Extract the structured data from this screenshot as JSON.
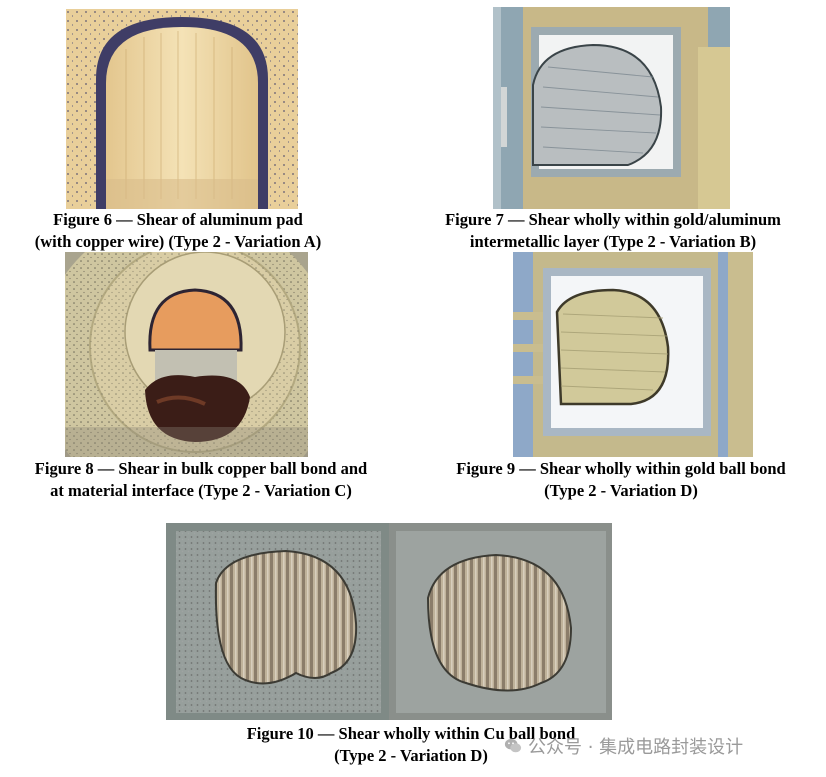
{
  "figures": [
    {
      "id": "fig6",
      "caption_lines": [
        "Figure 6 — Shear of aluminum pad",
        "(with copper wire) (Type 2 - Variation A)"
      ]
    },
    {
      "id": "fig7",
      "caption_lines": [
        "Figure 7 — Shear wholly within gold/aluminum",
        "intermetallic layer (Type 2 - Variation B)"
      ]
    },
    {
      "id": "fig8",
      "caption_lines": [
        "Figure 8 — Shear in bulk copper ball bond and",
        "at material interface (Type 2 - Variation C)"
      ]
    },
    {
      "id": "fig9",
      "caption_lines": [
        "Figure 9 — Shear wholly within gold ball bond",
        "(Type 2 - Variation D)"
      ]
    },
    {
      "id": "fig10",
      "caption_lines": [
        "Figure 10 — Shear wholly within Cu ball bond",
        "(Type 2 - Variation D)"
      ]
    }
  ],
  "watermark": {
    "text": "公众号 · 集成电路封装设计",
    "icon": "wechat-icon"
  }
}
